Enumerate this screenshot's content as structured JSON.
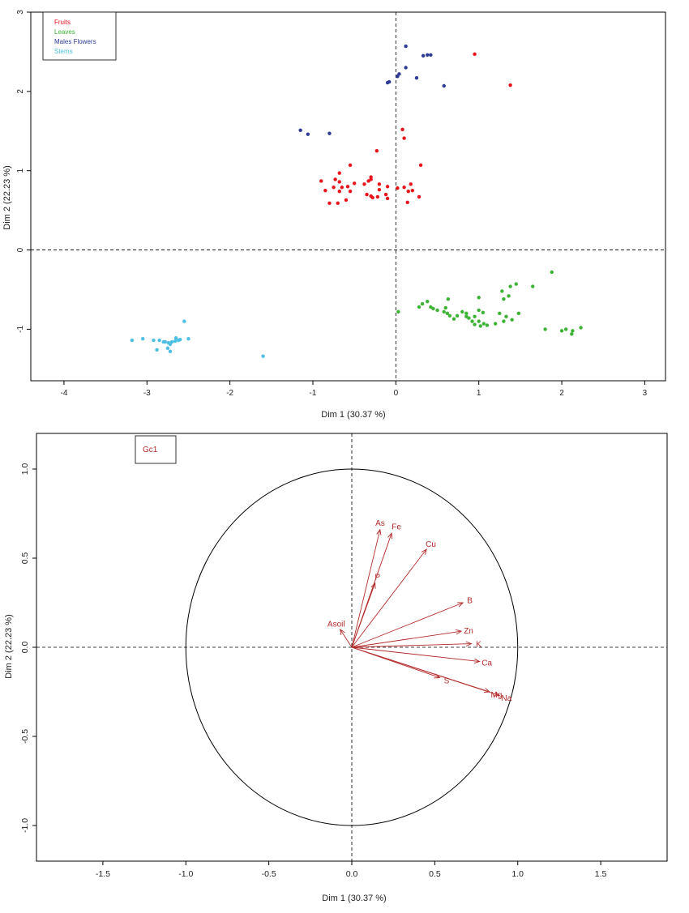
{
  "chart_data": [
    {
      "type": "scatter",
      "title": "",
      "xlabel": "Dim 1 (30.37 %)",
      "ylabel": "Dim 2 (22.23 %)",
      "xlim": [
        -4.4,
        3.25
      ],
      "ylim": [
        -1.65,
        3.0
      ],
      "xticks": [
        "-4",
        "-3",
        "-2",
        "-1",
        "0",
        "1",
        "2",
        "3"
      ],
      "yticks": [
        "-1",
        "0",
        "1",
        "2",
        "3"
      ],
      "grid": false,
      "legend_position": "top-left",
      "series": [
        {
          "name": "Fruits",
          "color": "#e8131b",
          "points": [
            [
              0.95,
              2.47
            ],
            [
              1.38,
              2.08
            ],
            [
              0.08,
              1.52
            ],
            [
              0.1,
              1.41
            ],
            [
              -0.23,
              1.25
            ],
            [
              -0.55,
              1.07
            ],
            [
              0.3,
              1.07
            ],
            [
              -0.68,
              0.97
            ],
            [
              -0.3,
              0.92
            ],
            [
              -0.3,
              0.89
            ],
            [
              -0.33,
              0.87
            ],
            [
              -0.9,
              0.87
            ],
            [
              -0.73,
              0.89
            ],
            [
              -0.68,
              0.86
            ],
            [
              -0.5,
              0.84
            ],
            [
              -0.38,
              0.83
            ],
            [
              -0.2,
              0.83
            ],
            [
              0.18,
              0.83
            ],
            [
              -0.75,
              0.79
            ],
            [
              -0.65,
              0.79
            ],
            [
              -0.58,
              0.8
            ],
            [
              -0.1,
              0.8
            ],
            [
              0.1,
              0.79
            ],
            [
              -0.85,
              0.75
            ],
            [
              -0.68,
              0.74
            ],
            [
              -0.55,
              0.74
            ],
            [
              -0.2,
              0.76
            ],
            [
              0.02,
              0.78
            ],
            [
              -0.35,
              0.7
            ],
            [
              -0.3,
              0.68
            ],
            [
              -0.22,
              0.67
            ],
            [
              0.15,
              0.74
            ],
            [
              0.28,
              0.67
            ],
            [
              -0.12,
              0.7
            ],
            [
              -0.28,
              0.66
            ],
            [
              -0.1,
              0.65
            ],
            [
              -0.8,
              0.59
            ],
            [
              -0.7,
              0.59
            ],
            [
              -0.6,
              0.63
            ],
            [
              0.14,
              0.6
            ],
            [
              0.2,
              0.75
            ]
          ]
        },
        {
          "name": "Leaves",
          "color": "#3db335",
          "points": [
            [
              1.88,
              -0.28
            ],
            [
              1.28,
              -0.52
            ],
            [
              1.45,
              -0.43
            ],
            [
              1.38,
              -0.46
            ],
            [
              1.65,
              -0.46
            ],
            [
              1.3,
              -0.62
            ],
            [
              1.36,
              -0.58
            ],
            [
              1.0,
              -0.6
            ],
            [
              0.63,
              -0.62
            ],
            [
              0.03,
              -0.78
            ],
            [
              0.32,
              -0.68
            ],
            [
              0.38,
              -0.65
            ],
            [
              0.42,
              -0.72
            ],
            [
              0.45,
              -0.74
            ],
            [
              0.5,
              -0.76
            ],
            [
              0.6,
              -0.73
            ],
            [
              0.58,
              -0.78
            ],
            [
              0.62,
              -0.8
            ],
            [
              0.74,
              -0.83
            ],
            [
              0.8,
              -0.78
            ],
            [
              0.85,
              -0.8
            ],
            [
              0.88,
              -0.86
            ],
            [
              0.95,
              -0.84
            ],
            [
              1.0,
              -0.76
            ],
            [
              1.05,
              -0.79
            ],
            [
              0.92,
              -0.9
            ],
            [
              1.0,
              -0.9
            ],
            [
              1.06,
              -0.93
            ],
            [
              1.2,
              -0.93
            ],
            [
              1.3,
              -0.9
            ],
            [
              1.4,
              -0.88
            ],
            [
              1.25,
              -0.8
            ],
            [
              1.33,
              -0.84
            ],
            [
              1.48,
              -0.8
            ],
            [
              0.65,
              -0.83
            ],
            [
              0.7,
              -0.87
            ],
            [
              0.85,
              -0.84
            ],
            [
              0.95,
              -0.94
            ],
            [
              1.02,
              -0.96
            ],
            [
              1.1,
              -0.95
            ],
            [
              1.8,
              -1.0
            ],
            [
              2.0,
              -1.02
            ],
            [
              2.05,
              -1.0
            ],
            [
              2.13,
              -1.02
            ],
            [
              2.23,
              -0.98
            ],
            [
              2.12,
              -1.06
            ],
            [
              0.28,
              -0.72
            ]
          ]
        },
        {
          "name": "Males Flowers",
          "color": "#2d3a96",
          "points": [
            [
              0.12,
              2.57
            ],
            [
              0.33,
              2.45
            ],
            [
              0.38,
              2.46
            ],
            [
              0.42,
              2.46
            ],
            [
              0.12,
              2.3
            ],
            [
              0.04,
              2.22
            ],
            [
              0.02,
              2.19
            ],
            [
              0.25,
              2.17
            ],
            [
              -0.08,
              2.12
            ],
            [
              -0.1,
              2.11
            ],
            [
              0.58,
              2.07
            ],
            [
              -1.15,
              1.51
            ],
            [
              -1.06,
              1.46
            ],
            [
              -0.8,
              1.47
            ]
          ]
        },
        {
          "name": "Stems",
          "color": "#4cbfe3",
          "points": [
            [
              -2.55,
              -0.9
            ],
            [
              -3.18,
              -1.14
            ],
            [
              -3.05,
              -1.12
            ],
            [
              -2.92,
              -1.14
            ],
            [
              -2.85,
              -1.14
            ],
            [
              -2.78,
              -1.16
            ],
            [
              -2.74,
              -1.17
            ],
            [
              -2.7,
              -1.16
            ],
            [
              -2.66,
              -1.15
            ],
            [
              -2.62,
              -1.14
            ],
            [
              -2.65,
              -1.11
            ],
            [
              -2.6,
              -1.13
            ],
            [
              -2.72,
              -1.19
            ],
            [
              -2.8,
              -1.16
            ],
            [
              -2.88,
              -1.26
            ],
            [
              -2.75,
              -1.24
            ],
            [
              -2.72,
              -1.28
            ],
            [
              -2.5,
              -1.12
            ],
            [
              -1.6,
              -1.34
            ]
          ]
        }
      ]
    },
    {
      "type": "vector",
      "title": "",
      "xlabel": "Dim 1 (30.37 %)",
      "ylabel": "Dim 2 (22.23 %)",
      "xlim": [
        -1.9,
        1.9
      ],
      "ylim": [
        -1.2,
        1.2
      ],
      "xticks": [
        "-1.5",
        "-1.0",
        "-0.5",
        "0.0",
        "0.5",
        "1.0",
        "1.5"
      ],
      "yticks": [
        "-1.0",
        "-0.5",
        "0.0",
        "0.5",
        "1.0"
      ],
      "grid": false,
      "legend": [
        "Gc1"
      ],
      "legend_position": "top-left",
      "arrow_color": "#b52a2a",
      "vectors": [
        {
          "label": "As",
          "x": 0.17,
          "y": 0.66
        },
        {
          "label": "Fe",
          "x": 0.24,
          "y": 0.64
        },
        {
          "label": "Cu",
          "x": 0.45,
          "y": 0.55
        },
        {
          "label": "P",
          "x": 0.14,
          "y": 0.36
        },
        {
          "label": "B",
          "x": 0.67,
          "y": 0.25
        },
        {
          "label": "Asoil",
          "x": -0.07,
          "y": 0.1
        },
        {
          "label": "Zn",
          "x": 0.66,
          "y": 0.09
        },
        {
          "label": "K",
          "x": 0.72,
          "y": 0.02
        },
        {
          "label": "Ca",
          "x": 0.77,
          "y": -0.08
        },
        {
          "label": "S",
          "x": 0.53,
          "y": -0.17
        },
        {
          "label": "Mg",
          "x": 0.83,
          "y": -0.25
        },
        {
          "label": "Na",
          "x": 0.89,
          "y": -0.27
        }
      ]
    }
  ]
}
